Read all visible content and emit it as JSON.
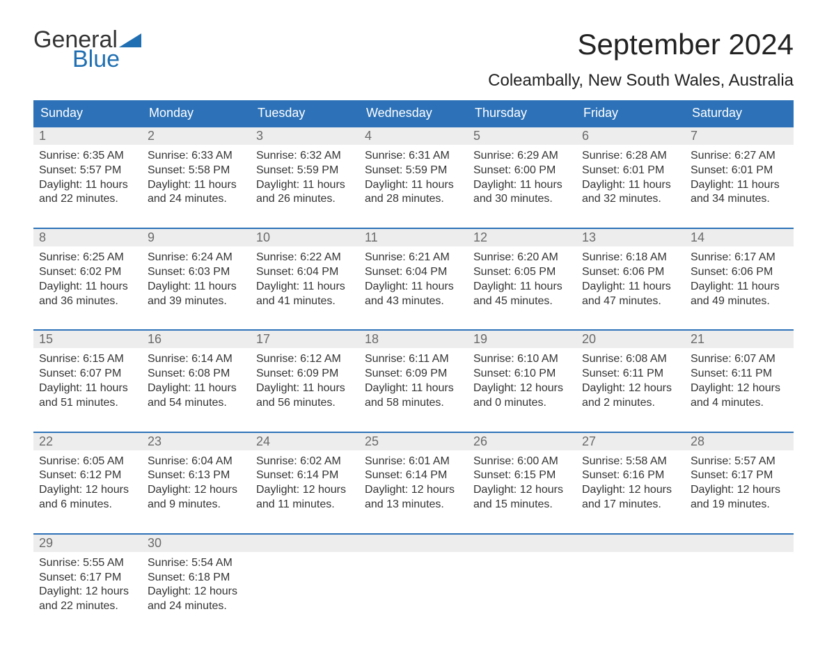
{
  "logo": {
    "text_general": "General",
    "text_blue": "Blue",
    "flag_color": "#1f6fb2"
  },
  "title": "September 2024",
  "location": "Coleambally, New South Wales, Australia",
  "colors": {
    "header_bg": "#2d72b8",
    "header_text": "#ffffff",
    "daynum_bg": "#ededed",
    "daynum_text": "#6a6a6a",
    "body_text": "#333333",
    "rule": "#2d72b8",
    "background": "#ffffff",
    "logo_blue": "#1f6fb2"
  },
  "typography": {
    "month_title_pt": 42,
    "location_pt": 24,
    "day_header_pt": 18,
    "daynum_pt": 18,
    "cell_pt": 16,
    "logo_pt": 34
  },
  "day_names": [
    "Sunday",
    "Monday",
    "Tuesday",
    "Wednesday",
    "Thursday",
    "Friday",
    "Saturday"
  ],
  "weeks": [
    [
      {
        "n": "1",
        "sunrise": "6:35 AM",
        "sunset": "5:57 PM",
        "dl1": "Daylight: 11 hours",
        "dl2": "and 22 minutes."
      },
      {
        "n": "2",
        "sunrise": "6:33 AM",
        "sunset": "5:58 PM",
        "dl1": "Daylight: 11 hours",
        "dl2": "and 24 minutes."
      },
      {
        "n": "3",
        "sunrise": "6:32 AM",
        "sunset": "5:59 PM",
        "dl1": "Daylight: 11 hours",
        "dl2": "and 26 minutes."
      },
      {
        "n": "4",
        "sunrise": "6:31 AM",
        "sunset": "5:59 PM",
        "dl1": "Daylight: 11 hours",
        "dl2": "and 28 minutes."
      },
      {
        "n": "5",
        "sunrise": "6:29 AM",
        "sunset": "6:00 PM",
        "dl1": "Daylight: 11 hours",
        "dl2": "and 30 minutes."
      },
      {
        "n": "6",
        "sunrise": "6:28 AM",
        "sunset": "6:01 PM",
        "dl1": "Daylight: 11 hours",
        "dl2": "and 32 minutes."
      },
      {
        "n": "7",
        "sunrise": "6:27 AM",
        "sunset": "6:01 PM",
        "dl1": "Daylight: 11 hours",
        "dl2": "and 34 minutes."
      }
    ],
    [
      {
        "n": "8",
        "sunrise": "6:25 AM",
        "sunset": "6:02 PM",
        "dl1": "Daylight: 11 hours",
        "dl2": "and 36 minutes."
      },
      {
        "n": "9",
        "sunrise": "6:24 AM",
        "sunset": "6:03 PM",
        "dl1": "Daylight: 11 hours",
        "dl2": "and 39 minutes."
      },
      {
        "n": "10",
        "sunrise": "6:22 AM",
        "sunset": "6:04 PM",
        "dl1": "Daylight: 11 hours",
        "dl2": "and 41 minutes."
      },
      {
        "n": "11",
        "sunrise": "6:21 AM",
        "sunset": "6:04 PM",
        "dl1": "Daylight: 11 hours",
        "dl2": "and 43 minutes."
      },
      {
        "n": "12",
        "sunrise": "6:20 AM",
        "sunset": "6:05 PM",
        "dl1": "Daylight: 11 hours",
        "dl2": "and 45 minutes."
      },
      {
        "n": "13",
        "sunrise": "6:18 AM",
        "sunset": "6:06 PM",
        "dl1": "Daylight: 11 hours",
        "dl2": "and 47 minutes."
      },
      {
        "n": "14",
        "sunrise": "6:17 AM",
        "sunset": "6:06 PM",
        "dl1": "Daylight: 11 hours",
        "dl2": "and 49 minutes."
      }
    ],
    [
      {
        "n": "15",
        "sunrise": "6:15 AM",
        "sunset": "6:07 PM",
        "dl1": "Daylight: 11 hours",
        "dl2": "and 51 minutes."
      },
      {
        "n": "16",
        "sunrise": "6:14 AM",
        "sunset": "6:08 PM",
        "dl1": "Daylight: 11 hours",
        "dl2": "and 54 minutes."
      },
      {
        "n": "17",
        "sunrise": "6:12 AM",
        "sunset": "6:09 PM",
        "dl1": "Daylight: 11 hours",
        "dl2": "and 56 minutes."
      },
      {
        "n": "18",
        "sunrise": "6:11 AM",
        "sunset": "6:09 PM",
        "dl1": "Daylight: 11 hours",
        "dl2": "and 58 minutes."
      },
      {
        "n": "19",
        "sunrise": "6:10 AM",
        "sunset": "6:10 PM",
        "dl1": "Daylight: 12 hours",
        "dl2": "and 0 minutes."
      },
      {
        "n": "20",
        "sunrise": "6:08 AM",
        "sunset": "6:11 PM",
        "dl1": "Daylight: 12 hours",
        "dl2": "and 2 minutes."
      },
      {
        "n": "21",
        "sunrise": "6:07 AM",
        "sunset": "6:11 PM",
        "dl1": "Daylight: 12 hours",
        "dl2": "and 4 minutes."
      }
    ],
    [
      {
        "n": "22",
        "sunrise": "6:05 AM",
        "sunset": "6:12 PM",
        "dl1": "Daylight: 12 hours",
        "dl2": "and 6 minutes."
      },
      {
        "n": "23",
        "sunrise": "6:04 AM",
        "sunset": "6:13 PM",
        "dl1": "Daylight: 12 hours",
        "dl2": "and 9 minutes."
      },
      {
        "n": "24",
        "sunrise": "6:02 AM",
        "sunset": "6:14 PM",
        "dl1": "Daylight: 12 hours",
        "dl2": "and 11 minutes."
      },
      {
        "n": "25",
        "sunrise": "6:01 AM",
        "sunset": "6:14 PM",
        "dl1": "Daylight: 12 hours",
        "dl2": "and 13 minutes."
      },
      {
        "n": "26",
        "sunrise": "6:00 AM",
        "sunset": "6:15 PM",
        "dl1": "Daylight: 12 hours",
        "dl2": "and 15 minutes."
      },
      {
        "n": "27",
        "sunrise": "5:58 AM",
        "sunset": "6:16 PM",
        "dl1": "Daylight: 12 hours",
        "dl2": "and 17 minutes."
      },
      {
        "n": "28",
        "sunrise": "5:57 AM",
        "sunset": "6:17 PM",
        "dl1": "Daylight: 12 hours",
        "dl2": "and 19 minutes."
      }
    ],
    [
      {
        "n": "29",
        "sunrise": "5:55 AM",
        "sunset": "6:17 PM",
        "dl1": "Daylight: 12 hours",
        "dl2": "and 22 minutes."
      },
      {
        "n": "30",
        "sunrise": "5:54 AM",
        "sunset": "6:18 PM",
        "dl1": "Daylight: 12 hours",
        "dl2": "and 24 minutes."
      },
      {
        "n": "",
        "sunrise": "",
        "sunset": "",
        "dl1": "",
        "dl2": ""
      },
      {
        "n": "",
        "sunrise": "",
        "sunset": "",
        "dl1": "",
        "dl2": ""
      },
      {
        "n": "",
        "sunrise": "",
        "sunset": "",
        "dl1": "",
        "dl2": ""
      },
      {
        "n": "",
        "sunrise": "",
        "sunset": "",
        "dl1": "",
        "dl2": ""
      },
      {
        "n": "",
        "sunrise": "",
        "sunset": "",
        "dl1": "",
        "dl2": ""
      }
    ]
  ],
  "labels": {
    "sunrise_prefix": "Sunrise: ",
    "sunset_prefix": "Sunset: "
  }
}
